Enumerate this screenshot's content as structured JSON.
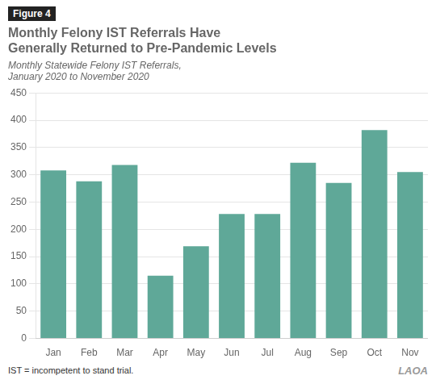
{
  "chart_data": {
    "type": "bar",
    "title": [
      "Monthly Felony IST Referrals Have",
      "Generally Returned to Pre-Pandemic Levels"
    ],
    "subtitle": [
      "Monthly Statewide Felony IST Referrals,",
      "January 2020 to November 2020"
    ],
    "annotations": [
      "Figure 4",
      "IST = incompetent to stand trial.",
      "LAOA"
    ],
    "categories": [
      "Jan",
      "Feb",
      "Mar",
      "Apr",
      "May",
      "Jun",
      "Jul",
      "Aug",
      "Sep",
      "Oct",
      "Nov"
    ],
    "values": [
      308,
      288,
      318,
      115,
      169,
      228,
      228,
      322,
      285,
      382,
      305
    ],
    "color": "#5fa898",
    "ylim": [
      0,
      450
    ],
    "yticks": [
      0,
      50,
      100,
      150,
      200,
      250,
      300,
      350,
      400,
      450
    ],
    "grid": true
  }
}
